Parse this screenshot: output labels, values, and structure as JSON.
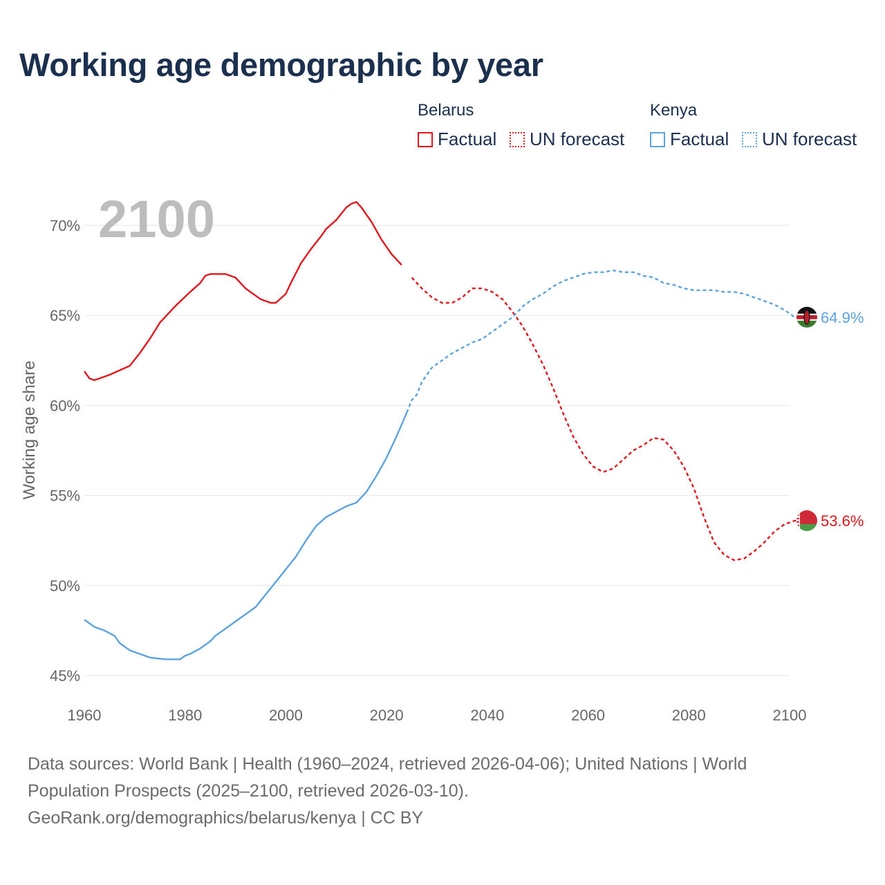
{
  "title": "Working age demographic by year",
  "year_label": "2100",
  "legend": [
    {
      "country": "Belarus",
      "color": "#e3161b",
      "items": [
        {
          "label": "Factual",
          "style": "solid"
        },
        {
          "label": "UN forecast",
          "style": "dotted"
        }
      ]
    },
    {
      "country": "Kenya",
      "color": "#5ba3e0",
      "items": [
        {
          "label": "Factual",
          "style": "solid"
        },
        {
          "label": "UN forecast",
          "style": "dotted"
        }
      ]
    }
  ],
  "footer": {
    "line1": "Data sources: World Bank | Health (1960–2024, retrieved 2026-04-06); United Nations | World",
    "line2": "Population Prospects (2025–2100, retrieved 2026-03-10).",
    "line3": "GeoRank.org/demographics/belarus/kenya | CC BY"
  },
  "chart_data": {
    "type": "line",
    "title": "Working age demographic by year",
    "xlabel": "",
    "ylabel": "Working age share",
    "xlim": [
      1960,
      2100
    ],
    "ylim": [
      45,
      72
    ],
    "x_ticks": [
      1960,
      1980,
      2000,
      2020,
      2040,
      2060,
      2080,
      2100
    ],
    "y_ticks": [
      45,
      50,
      55,
      60,
      65,
      70
    ],
    "y_tick_labels": [
      "45%",
      "50%",
      "55%",
      "60%",
      "65%",
      "70%"
    ],
    "x_tick_labels": [
      "1960",
      "1980",
      "2000",
      "2020",
      "2040",
      "2060",
      "2080",
      "2100"
    ],
    "factual_end_year": 2024,
    "series": [
      {
        "name": "Belarus",
        "color": "#e3161b",
        "end_label": "53.6%",
        "flag": "belarus",
        "points": [
          [
            1960,
            61.9
          ],
          [
            1961,
            61.5
          ],
          [
            1962,
            61.4
          ],
          [
            1965,
            61.7
          ],
          [
            1969,
            62.2
          ],
          [
            1971,
            62.9
          ],
          [
            1973,
            63.7
          ],
          [
            1975,
            64.6
          ],
          [
            1978,
            65.5
          ],
          [
            1981,
            66.3
          ],
          [
            1983,
            66.8
          ],
          [
            1984,
            67.2
          ],
          [
            1985,
            67.3
          ],
          [
            1988,
            67.3
          ],
          [
            1990,
            67.1
          ],
          [
            1992,
            66.5
          ],
          [
            1995,
            65.9
          ],
          [
            1997,
            65.7
          ],
          [
            1998,
            65.7
          ],
          [
            2000,
            66.2
          ],
          [
            2001,
            66.8
          ],
          [
            2003,
            67.9
          ],
          [
            2005,
            68.7
          ],
          [
            2007,
            69.4
          ],
          [
            2008,
            69.8
          ],
          [
            2010,
            70.3
          ],
          [
            2012,
            71.0
          ],
          [
            2013,
            71.2
          ],
          [
            2014,
            71.3
          ],
          [
            2015,
            71.0
          ],
          [
            2017,
            70.2
          ],
          [
            2019,
            69.2
          ],
          [
            2021,
            68.4
          ],
          [
            2023,
            67.8
          ],
          [
            2025,
            67.1
          ],
          [
            2027,
            66.5
          ],
          [
            2029,
            66.0
          ],
          [
            2031,
            65.7
          ],
          [
            2033,
            65.7
          ],
          [
            2035,
            66.0
          ],
          [
            2037,
            66.5
          ],
          [
            2039,
            66.5
          ],
          [
            2041,
            66.3
          ],
          [
            2043,
            65.9
          ],
          [
            2045,
            65.2
          ],
          [
            2047,
            64.4
          ],
          [
            2049,
            63.4
          ],
          [
            2051,
            62.3
          ],
          [
            2053,
            61.0
          ],
          [
            2055,
            59.6
          ],
          [
            2057,
            58.3
          ],
          [
            2059,
            57.3
          ],
          [
            2061,
            56.6
          ],
          [
            2063,
            56.3
          ],
          [
            2065,
            56.5
          ],
          [
            2067,
            57.0
          ],
          [
            2069,
            57.5
          ],
          [
            2071,
            57.8
          ],
          [
            2073,
            58.2
          ],
          [
            2075,
            58.1
          ],
          [
            2077,
            57.5
          ],
          [
            2079,
            56.6
          ],
          [
            2081,
            55.4
          ],
          [
            2083,
            53.8
          ],
          [
            2085,
            52.4
          ],
          [
            2087,
            51.7
          ],
          [
            2089,
            51.4
          ],
          [
            2091,
            51.5
          ],
          [
            2093,
            51.9
          ],
          [
            2095,
            52.4
          ],
          [
            2097,
            53.0
          ],
          [
            2099,
            53.4
          ],
          [
            2101,
            53.6
          ],
          [
            2102,
            53.6
          ]
        ]
      },
      {
        "name": "Kenya",
        "color": "#5ba3e0",
        "end_label": "64.9%",
        "flag": "kenya",
        "points": [
          [
            1960,
            48.1
          ],
          [
            1962,
            47.7
          ],
          [
            1964,
            47.5
          ],
          [
            1966,
            47.2
          ],
          [
            1967,
            46.8
          ],
          [
            1969,
            46.4
          ],
          [
            1971,
            46.2
          ],
          [
            1973,
            46.0
          ],
          [
            1976,
            45.9
          ],
          [
            1979,
            45.9
          ],
          [
            1980,
            46.1
          ],
          [
            1981,
            46.2
          ],
          [
            1983,
            46.5
          ],
          [
            1985,
            46.9
          ],
          [
            1986,
            47.2
          ],
          [
            1988,
            47.6
          ],
          [
            1990,
            48.0
          ],
          [
            1992,
            48.4
          ],
          [
            1994,
            48.8
          ],
          [
            1996,
            49.5
          ],
          [
            1998,
            50.2
          ],
          [
            2000,
            50.9
          ],
          [
            2002,
            51.6
          ],
          [
            2004,
            52.5
          ],
          [
            2006,
            53.3
          ],
          [
            2008,
            53.8
          ],
          [
            2010,
            54.1
          ],
          [
            2012,
            54.4
          ],
          [
            2014,
            54.6
          ],
          [
            2016,
            55.2
          ],
          [
            2018,
            56.1
          ],
          [
            2020,
            57.1
          ],
          [
            2022,
            58.3
          ],
          [
            2024,
            59.6
          ],
          [
            2025,
            60.3
          ],
          [
            2026,
            60.6
          ],
          [
            2027,
            61.3
          ],
          [
            2029,
            62.1
          ],
          [
            2031,
            62.5
          ],
          [
            2033,
            62.9
          ],
          [
            2035,
            63.2
          ],
          [
            2037,
            63.5
          ],
          [
            2039,
            63.7
          ],
          [
            2041,
            64.1
          ],
          [
            2043,
            64.5
          ],
          [
            2045,
            64.9
          ],
          [
            2047,
            65.5
          ],
          [
            2049,
            65.9
          ],
          [
            2051,
            66.2
          ],
          [
            2053,
            66.6
          ],
          [
            2055,
            66.9
          ],
          [
            2057,
            67.1
          ],
          [
            2059,
            67.3
          ],
          [
            2061,
            67.4
          ],
          [
            2063,
            67.4
          ],
          [
            2065,
            67.5
          ],
          [
            2067,
            67.4
          ],
          [
            2069,
            67.4
          ],
          [
            2071,
            67.2
          ],
          [
            2073,
            67.1
          ],
          [
            2075,
            66.8
          ],
          [
            2077,
            66.7
          ],
          [
            2079,
            66.5
          ],
          [
            2081,
            66.4
          ],
          [
            2083,
            66.4
          ],
          [
            2085,
            66.4
          ],
          [
            2087,
            66.3
          ],
          [
            2089,
            66.3
          ],
          [
            2091,
            66.2
          ],
          [
            2093,
            66.0
          ],
          [
            2095,
            65.8
          ],
          [
            2097,
            65.6
          ],
          [
            2099,
            65.3
          ],
          [
            2101,
            64.9
          ],
          [
            2102,
            64.9
          ]
        ]
      }
    ]
  }
}
